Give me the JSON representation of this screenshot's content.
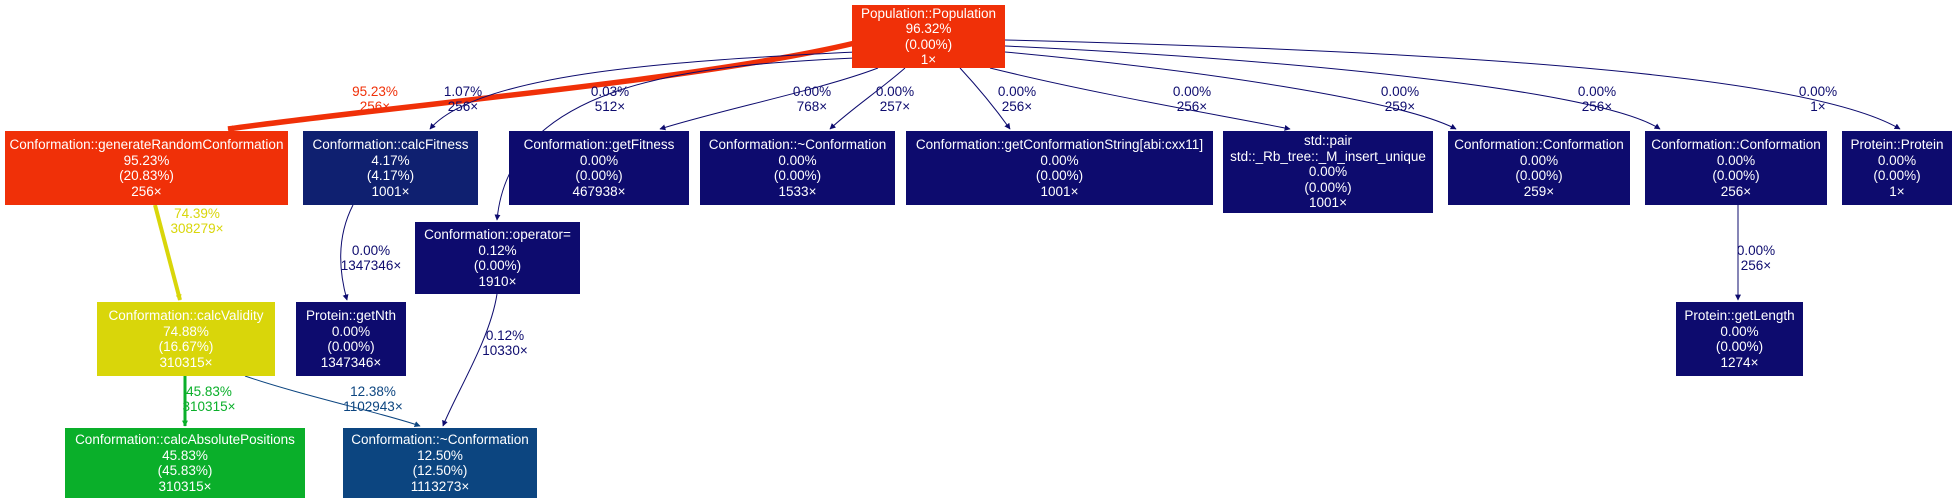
{
  "nodes": {
    "pop": {
      "lines": [
        "Population::Population",
        "96.32%",
        "(0.00%)",
        "1×"
      ],
      "fill": "#f03008",
      "text": "#ffffff"
    },
    "grc": {
      "lines": [
        "Conformation::generateRandomConformation",
        "95.23%",
        "(20.83%)",
        "256×"
      ],
      "fill": "#f03008",
      "text": "#ffffff"
    },
    "calcFit": {
      "lines": [
        "Conformation::calcFitness",
        "4.17%",
        "(4.17%)",
        "1001×"
      ],
      "fill": "#0f2070",
      "text": "#ffffff"
    },
    "getFit": {
      "lines": [
        "Conformation::getFitness",
        "0.00%",
        "(0.00%)",
        "467938×"
      ],
      "fill": "#0d0b6e",
      "text": "#ffffff"
    },
    "dtorA": {
      "lines": [
        "Conformation::~Conformation",
        "0.00%",
        "(0.00%)",
        "1533×"
      ],
      "fill": "#0d0b6e",
      "text": "#ffffff"
    },
    "getStr": {
      "lines": [
        "Conformation::getConformationString[abi:cxx11]",
        "0.00%",
        "(0.00%)",
        "1001×"
      ],
      "fill": "#0d0b6e",
      "text": "#ffffff"
    },
    "pair": {
      "lines": [
        "std::pair",
        "std::_Rb_tree::_M_insert_unique",
        "0.00%",
        "(0.00%)",
        "1001×"
      ],
      "fill": "#0d0b6e",
      "text": "#ffffff"
    },
    "ctorA": {
      "lines": [
        "Conformation::Conformation",
        "0.00%",
        "(0.00%)",
        "259×"
      ],
      "fill": "#0d0b6e",
      "text": "#ffffff"
    },
    "ctorB": {
      "lines": [
        "Conformation::Conformation",
        "0.00%",
        "(0.00%)",
        "256×"
      ],
      "fill": "#0d0b6e",
      "text": "#ffffff"
    },
    "protein": {
      "lines": [
        "Protein::Protein",
        "0.00%",
        "(0.00%)",
        "1×"
      ],
      "fill": "#0d0b6e",
      "text": "#ffffff"
    },
    "opEq": {
      "lines": [
        "Conformation::operator=",
        "0.12%",
        "(0.00%)",
        "1910×"
      ],
      "fill": "#0d0b6e",
      "text": "#ffffff"
    },
    "calcVal": {
      "lines": [
        "Conformation::calcValidity",
        "74.88%",
        "(16.67%)",
        "310315×"
      ],
      "fill": "#d9d60a",
      "text": "#ffffff"
    },
    "getNth": {
      "lines": [
        "Protein::getNth",
        "0.00%",
        "(0.00%)",
        "1347346×"
      ],
      "fill": "#0d0b6e",
      "text": "#ffffff"
    },
    "getLen": {
      "lines": [
        "Protein::getLength",
        "0.00%",
        "(0.00%)",
        "1274×"
      ],
      "fill": "#0d0b6e",
      "text": "#ffffff"
    },
    "absPos": {
      "lines": [
        "Conformation::calcAbsolutePositions",
        "45.83%",
        "(45.83%)",
        "310315×"
      ],
      "fill": "#0aaf2a",
      "text": "#ffffff"
    },
    "dtorB": {
      "lines": [
        "Conformation::~Conformation",
        "12.50%",
        "(12.50%)",
        "1113273×"
      ],
      "fill": "#0c4580",
      "text": "#ffffff"
    }
  },
  "edges": [
    {
      "id": "pop-grc",
      "from": "pop",
      "to": "grc",
      "label": [
        "95.23%",
        "256×"
      ],
      "color": "#f03008"
    },
    {
      "id": "pop-calcFit",
      "from": "pop",
      "to": "calcFit",
      "label": [
        "1.07%",
        "256×"
      ],
      "color": "#0d0b6e"
    },
    {
      "id": "pop-opEq",
      "from": "pop",
      "to": "opEq",
      "label": [
        "0.03%",
        "512×"
      ],
      "color": "#0d0b6e"
    },
    {
      "id": "pop-getFit",
      "from": "pop",
      "to": "getFit",
      "label": [
        "0.00%",
        "768×"
      ],
      "color": "#0d0b6e"
    },
    {
      "id": "pop-dtorA",
      "from": "pop",
      "to": "dtorA",
      "label": [
        "0.00%",
        "257×"
      ],
      "color": "#0d0b6e"
    },
    {
      "id": "pop-getStr",
      "from": "pop",
      "to": "getStr",
      "label": [
        "0.00%",
        "256×"
      ],
      "color": "#0d0b6e"
    },
    {
      "id": "pop-pair",
      "from": "pop",
      "to": "pair",
      "label": [
        "0.00%",
        "256×"
      ],
      "color": "#0d0b6e"
    },
    {
      "id": "pop-ctorA",
      "from": "pop",
      "to": "ctorA",
      "label": [
        "0.00%",
        "259×"
      ],
      "color": "#0d0b6e"
    },
    {
      "id": "pop-ctorB",
      "from": "pop",
      "to": "ctorB",
      "label": [
        "0.00%",
        "256×"
      ],
      "color": "#0d0b6e"
    },
    {
      "id": "pop-protein",
      "from": "pop",
      "to": "protein",
      "label": [
        "0.00%",
        "1×"
      ],
      "color": "#0d0b6e"
    },
    {
      "id": "grc-calcVal",
      "from": "grc",
      "to": "calcVal",
      "label": [
        "74.39%",
        "308279×"
      ],
      "color": "#d9d60a"
    },
    {
      "id": "calcFit-getNth",
      "from": "calcFit",
      "to": "getNth",
      "label": [
        "0.00%",
        "1347346×"
      ],
      "color": "#0d0b6e"
    },
    {
      "id": "opEq-dtorB",
      "from": "opEq",
      "to": "dtorB",
      "label": [
        "0.12%",
        "10330×"
      ],
      "color": "#0d0b6e"
    },
    {
      "id": "ctorB-getLen",
      "from": "ctorB",
      "to": "getLen",
      "label": [
        "0.00%",
        "256×"
      ],
      "color": "#0d0b6e"
    },
    {
      "id": "calcVal-absPos",
      "from": "calcVal",
      "to": "absPos",
      "label": [
        "45.83%",
        "310315×"
      ],
      "color": "#0aaf2a"
    },
    {
      "id": "calcVal-dtorB",
      "from": "calcVal",
      "to": "dtorB",
      "label": [
        "12.38%",
        "1102943×"
      ],
      "color": "#0c4580"
    }
  ]
}
